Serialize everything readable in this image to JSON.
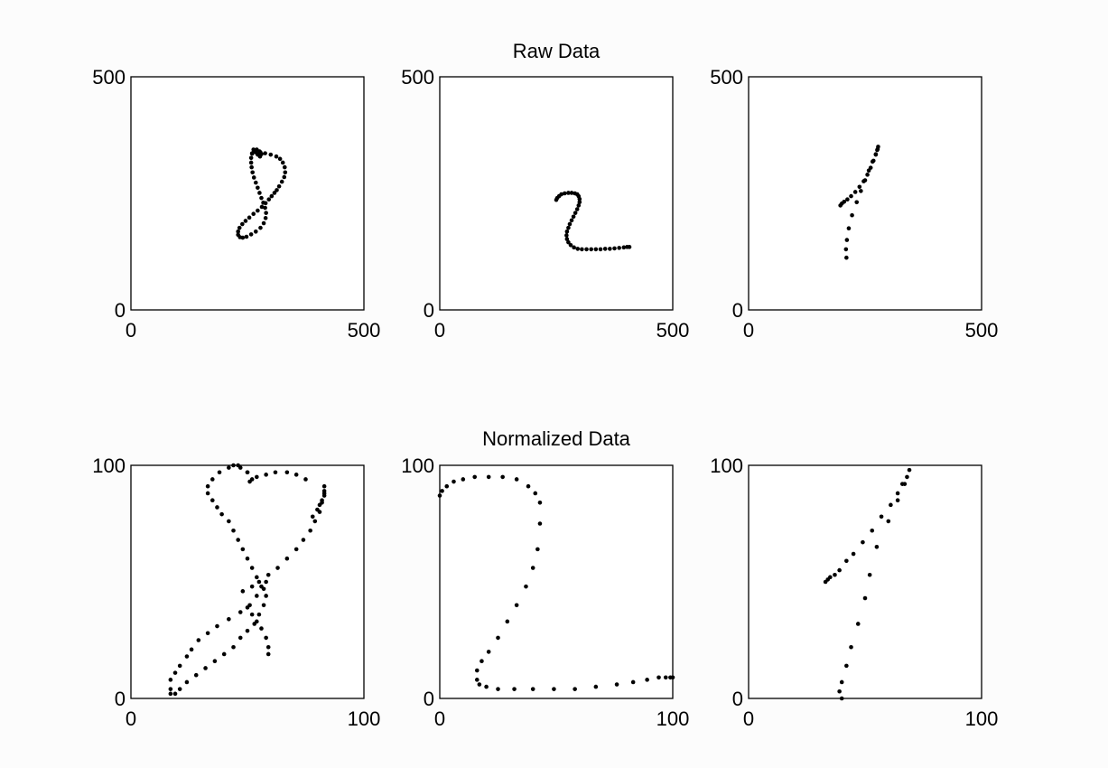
{
  "titles": {
    "raw": "Raw Data",
    "normalized": "Normalized Data"
  },
  "chart_data": [
    {
      "type": "scatter",
      "row": "raw",
      "title": "Raw Data",
      "xlim": [
        0,
        500
      ],
      "ylim": [
        0,
        500
      ],
      "xticks": [
        "0",
        "500"
      ],
      "yticks": [
        "0",
        "500"
      ],
      "grid": false,
      "marker_color": "#000000",
      "x": [
        260,
        268,
        278,
        288,
        300,
        312,
        320,
        326,
        330,
        331,
        329,
        324,
        318,
        313,
        308,
        302,
        296,
        289,
        281,
        272,
        263,
        254,
        246,
        239,
        233,
        230,
        230,
        234,
        240,
        248,
        258,
        268,
        278,
        285,
        289,
        290,
        288,
        284,
        280,
        276,
        272,
        268,
        264,
        261,
        259,
        258,
        258,
        260,
        264,
        270,
        276,
        280,
        277,
        272,
        267,
        263
      ],
      "y": [
        335,
        338,
        338,
        336,
        333,
        329,
        324,
        316,
        306,
        295,
        285,
        275,
        265,
        257,
        251,
        244,
        237,
        229,
        221,
        213,
        206,
        198,
        191,
        184,
        176,
        168,
        161,
        156,
        155,
        157,
        162,
        168,
        176,
        186,
        197,
        208,
        219,
        230,
        240,
        251,
        262,
        273,
        284,
        295,
        306,
        316,
        326,
        336,
        342,
        344,
        340,
        334,
        329,
        333,
        340,
        344
      ]
    },
    {
      "type": "scatter",
      "row": "raw",
      "title": "Raw Data",
      "xlim": [
        0,
        500
      ],
      "ylim": [
        0,
        500
      ],
      "xticks": [
        "0",
        "500"
      ],
      "yticks": [
        "0",
        "500"
      ],
      "grid": false,
      "marker_color": "#000000",
      "x": [
        250,
        252,
        256,
        261,
        268,
        276,
        283,
        290,
        295,
        298,
        300,
        300,
        298,
        295,
        291,
        287,
        283,
        279,
        276,
        273,
        272,
        273,
        276,
        281,
        288,
        296,
        305,
        315,
        325,
        335,
        345,
        355,
        365,
        375,
        385,
        395,
        402,
        407
      ],
      "y": [
        236,
        240,
        244,
        248,
        250,
        251,
        251,
        250,
        248,
        244,
        238,
        231,
        224,
        216,
        208,
        200,
        192,
        184,
        176,
        168,
        160,
        152,
        145,
        139,
        134,
        131,
        130,
        130,
        130,
        130,
        130,
        131,
        131,
        132,
        133,
        134,
        135,
        135
      ]
    },
    {
      "type": "scatter",
      "row": "raw",
      "title": "Raw Data",
      "xlim": [
        0,
        500
      ],
      "ylim": [
        0,
        500
      ],
      "xticks": [
        "0",
        "500"
      ],
      "yticks": [
        "0",
        "500"
      ],
      "grid": false,
      "marker_color": "#000000",
      "x": [
        197,
        200,
        205,
        212,
        220,
        229,
        238,
        247,
        255,
        262,
        268,
        273,
        276,
        278,
        277,
        273,
        266,
        258,
        250,
        241,
        232,
        222,
        215,
        211,
        209,
        210
      ],
      "y": [
        224,
        228,
        232,
        237,
        244,
        253,
        264,
        276,
        290,
        305,
        320,
        333,
        343,
        350,
        345,
        334,
        318,
        299,
        278,
        255,
        231,
        203,
        175,
        150,
        130,
        112
      ]
    },
    {
      "type": "scatter",
      "row": "normalized",
      "title": "Normalized Data",
      "xlim": [
        0,
        100
      ],
      "ylim": [
        0,
        100
      ],
      "xticks": [
        "0",
        "100"
      ],
      "yticks": [
        "0",
        "100"
      ],
      "grid": false,
      "marker_color": "#000000",
      "x": [
        44,
        47,
        50,
        52,
        50,
        46,
        42,
        38,
        35,
        33,
        33,
        35,
        37,
        39,
        42,
        44,
        46,
        48,
        50,
        52,
        54,
        56,
        58,
        57,
        55,
        53,
        50,
        47,
        44,
        40,
        36,
        32,
        28,
        24,
        21,
        19,
        17,
        17,
        17,
        19,
        21,
        24,
        26,
        29,
        33,
        37,
        42,
        47,
        51,
        54,
        57,
        58,
        59,
        59,
        58,
        56,
        54,
        52,
        50,
        48,
        52,
        55,
        59,
        63,
        67,
        71,
        74,
        77,
        79,
        81,
        82,
        83,
        83,
        83,
        83,
        82,
        81,
        80,
        78,
        75,
        71,
        67,
        62,
        58,
        54,
        51
      ],
      "y": [
        100,
        99,
        97,
        94,
        97,
        100,
        99,
        97,
        94,
        91,
        88,
        85,
        82,
        79,
        76,
        72,
        68,
        64,
        60,
        56,
        52,
        48,
        44,
        40,
        36,
        32,
        29,
        26,
        22,
        19,
        16,
        13,
        10,
        7,
        4,
        2,
        2,
        4,
        8,
        11,
        14,
        18,
        21,
        25,
        28,
        31,
        34,
        37,
        40,
        44,
        47,
        50,
        19,
        22,
        26,
        30,
        33,
        36,
        39,
        46,
        48,
        50,
        53,
        56,
        60,
        64,
        68,
        72,
        76,
        80,
        84,
        88,
        91,
        89,
        87,
        85,
        83,
        81,
        78,
        94,
        96,
        97,
        97,
        96,
        95,
        93
      ]
    },
    {
      "type": "scatter",
      "row": "normalized",
      "title": "Normalized Data",
      "xlim": [
        0,
        100
      ],
      "ylim": [
        0,
        100
      ],
      "xticks": [
        "0",
        "100"
      ],
      "yticks": [
        "0",
        "100"
      ],
      "grid": false,
      "marker_color": "#000000",
      "x": [
        0,
        1,
        3,
        6,
        10,
        15,
        21,
        27,
        33,
        38,
        41,
        43,
        43,
        42,
        40,
        37,
        33,
        29,
        25,
        21,
        18,
        16,
        16,
        17,
        20,
        25,
        32,
        40,
        49,
        58,
        67,
        76,
        83,
        89,
        94,
        97,
        99,
        100
      ],
      "y": [
        87,
        89,
        91,
        93,
        94,
        95,
        95,
        95,
        94,
        91,
        88,
        84,
        75,
        64,
        56,
        48,
        40,
        33,
        26,
        20,
        16,
        12,
        8,
        6,
        5,
        4,
        4,
        4,
        4,
        4,
        5,
        6,
        7,
        8,
        9,
        9,
        9,
        9
      ]
    },
    {
      "type": "scatter",
      "row": "normalized",
      "title": "Normalized Data",
      "xlim": [
        0,
        100
      ],
      "ylim": [
        0,
        100
      ],
      "xticks": [
        "0",
        "100"
      ],
      "yticks": [
        "0",
        "100"
      ],
      "grid": false,
      "marker_color": "#000000",
      "x": [
        33,
        34,
        35,
        37,
        39,
        42,
        45,
        49,
        53,
        57,
        61,
        64,
        66,
        68,
        69,
        67,
        64,
        60,
        55,
        52,
        50,
        47,
        44,
        42,
        40,
        39,
        40
      ],
      "y": [
        50,
        51,
        52,
        53,
        55,
        59,
        62,
        67,
        72,
        78,
        83,
        88,
        92,
        95,
        98,
        92,
        85,
        76,
        65,
        53,
        43,
        32,
        22,
        14,
        7,
        3,
        0
      ]
    }
  ]
}
